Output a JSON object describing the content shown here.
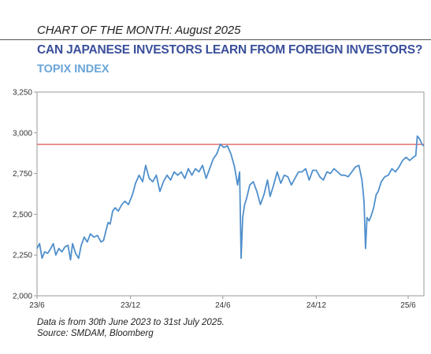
{
  "header": {
    "kicker": "CHART OF THE MONTH: August 2025",
    "title": "CAN JAPANESE INVESTORS LEARN FROM FOREIGN INVESTORS?",
    "subtitle": "TOPIX INDEX"
  },
  "footer": {
    "note": "Data is from 30th June 2023 to 31st July 2025.",
    "source": "Source: SMDAM, Bloomberg"
  },
  "colors": {
    "series": "#4f8fcc",
    "reference_line": "#e36f6f",
    "title": "#3a4f9a",
    "subtitle": "#6aa5d8"
  },
  "chart_data": {
    "type": "line",
    "title": "TOPIX INDEX",
    "xlabel": "",
    "ylabel": "",
    "ylim": [
      2000,
      3250
    ],
    "yticks": [
      2000,
      2250,
      2500,
      2750,
      3000,
      3250
    ],
    "ytick_labels": [
      "2,000",
      "2,250",
      "2,500",
      "2,750",
      "3,000",
      "3,250"
    ],
    "xlim": [
      "2023-06-30",
      "2025-07-31"
    ],
    "xticks": [
      "2023-06-30",
      "2023-12-31",
      "2024-06-30",
      "2024-12-31",
      "2025-06-30"
    ],
    "xtick_labels": [
      "23/6",
      "23/12",
      "24/6",
      "24/12",
      "25/6"
    ],
    "reference_line": {
      "y": 2929
    },
    "grid": false,
    "series": [
      {
        "points": [
          [
            "2023-06-30",
            2290
          ],
          [
            "2023-07-05",
            2320
          ],
          [
            "2023-07-10",
            2230
          ],
          [
            "2023-07-15",
            2270
          ],
          [
            "2023-07-21",
            2260
          ],
          [
            "2023-07-27",
            2290
          ],
          [
            "2023-08-01",
            2320
          ],
          [
            "2023-08-06",
            2250
          ],
          [
            "2023-08-12",
            2290
          ],
          [
            "2023-08-18",
            2270
          ],
          [
            "2023-08-24",
            2300
          ],
          [
            "2023-08-30",
            2310
          ],
          [
            "2023-09-04",
            2220
          ],
          [
            "2023-09-08",
            2320
          ],
          [
            "2023-09-14",
            2260
          ],
          [
            "2023-09-20",
            2230
          ],
          [
            "2023-09-25",
            2310
          ],
          [
            "2023-10-01",
            2360
          ],
          [
            "2023-10-07",
            2330
          ],
          [
            "2023-10-13",
            2380
          ],
          [
            "2023-10-20",
            2360
          ],
          [
            "2023-10-27",
            2370
          ],
          [
            "2023-11-03",
            2330
          ],
          [
            "2023-11-08",
            2340
          ],
          [
            "2023-11-12",
            2390
          ],
          [
            "2023-11-17",
            2450
          ],
          [
            "2023-11-21",
            2440
          ],
          [
            "2023-11-26",
            2520
          ],
          [
            "2023-12-01",
            2540
          ],
          [
            "2023-12-07",
            2520
          ],
          [
            "2023-12-14",
            2560
          ],
          [
            "2023-12-20",
            2580
          ],
          [
            "2023-12-27",
            2560
          ],
          [
            "2024-01-04",
            2620
          ],
          [
            "2024-01-10",
            2690
          ],
          [
            "2024-01-17",
            2740
          ],
          [
            "2024-01-24",
            2700
          ],
          [
            "2024-01-30",
            2800
          ],
          [
            "2024-02-06",
            2720
          ],
          [
            "2024-02-13",
            2700
          ],
          [
            "2024-02-20",
            2740
          ],
          [
            "2024-02-27",
            2640
          ],
          [
            "2024-03-05",
            2700
          ],
          [
            "2024-03-12",
            2740
          ],
          [
            "2024-03-19",
            2710
          ],
          [
            "2024-03-26",
            2760
          ],
          [
            "2024-04-02",
            2740
          ],
          [
            "2024-04-09",
            2760
          ],
          [
            "2024-04-16",
            2720
          ],
          [
            "2024-04-23",
            2780
          ],
          [
            "2024-04-30",
            2740
          ],
          [
            "2024-05-07",
            2780
          ],
          [
            "2024-05-14",
            2760
          ],
          [
            "2024-05-21",
            2800
          ],
          [
            "2024-05-28",
            2720
          ],
          [
            "2024-06-04",
            2780
          ],
          [
            "2024-06-11",
            2840
          ],
          [
            "2024-06-18",
            2870
          ],
          [
            "2024-06-25",
            2930
          ],
          [
            "2024-07-02",
            2910
          ],
          [
            "2024-07-09",
            2920
          ],
          [
            "2024-07-16",
            2870
          ],
          [
            "2024-07-23",
            2790
          ],
          [
            "2024-07-29",
            2680
          ],
          [
            "2024-08-02",
            2760
          ],
          [
            "2024-08-05",
            2230
          ],
          [
            "2024-08-08",
            2480
          ],
          [
            "2024-08-12",
            2560
          ],
          [
            "2024-08-16",
            2600
          ],
          [
            "2024-08-22",
            2680
          ],
          [
            "2024-08-29",
            2700
          ],
          [
            "2024-09-05",
            2640
          ],
          [
            "2024-09-12",
            2560
          ],
          [
            "2024-09-19",
            2620
          ],
          [
            "2024-09-26",
            2710
          ],
          [
            "2024-10-01",
            2610
          ],
          [
            "2024-10-08",
            2680
          ],
          [
            "2024-10-15",
            2760
          ],
          [
            "2024-10-22",
            2690
          ],
          [
            "2024-10-29",
            2740
          ],
          [
            "2024-11-05",
            2730
          ],
          [
            "2024-11-12",
            2680
          ],
          [
            "2024-11-19",
            2720
          ],
          [
            "2024-11-26",
            2760
          ],
          [
            "2024-12-03",
            2760
          ],
          [
            "2024-12-10",
            2780
          ],
          [
            "2024-12-17",
            2710
          ],
          [
            "2024-12-24",
            2770
          ],
          [
            "2024-12-31",
            2770
          ],
          [
            "2025-01-07",
            2730
          ],
          [
            "2025-01-14",
            2710
          ],
          [
            "2025-01-21",
            2760
          ],
          [
            "2025-01-28",
            2750
          ],
          [
            "2025-02-04",
            2780
          ],
          [
            "2025-02-11",
            2760
          ],
          [
            "2025-02-18",
            2740
          ],
          [
            "2025-02-25",
            2740
          ],
          [
            "2025-03-04",
            2730
          ],
          [
            "2025-03-11",
            2760
          ],
          [
            "2025-03-18",
            2790
          ],
          [
            "2025-03-25",
            2800
          ],
          [
            "2025-03-31",
            2710
          ],
          [
            "2025-04-04",
            2580
          ],
          [
            "2025-04-07",
            2290
          ],
          [
            "2025-04-10",
            2480
          ],
          [
            "2025-04-14",
            2460
          ],
          [
            "2025-04-18",
            2490
          ],
          [
            "2025-04-23",
            2540
          ],
          [
            "2025-04-28",
            2620
          ],
          [
            "2025-05-02",
            2640
          ],
          [
            "2025-05-08",
            2700
          ],
          [
            "2025-05-15",
            2730
          ],
          [
            "2025-05-22",
            2740
          ],
          [
            "2025-05-29",
            2780
          ],
          [
            "2025-06-05",
            2760
          ],
          [
            "2025-06-12",
            2790
          ],
          [
            "2025-06-19",
            2830
          ],
          [
            "2025-06-26",
            2850
          ],
          [
            "2025-07-03",
            2830
          ],
          [
            "2025-07-10",
            2850
          ],
          [
            "2025-07-15",
            2860
          ],
          [
            "2025-07-18",
            2980
          ],
          [
            "2025-07-23",
            2960
          ],
          [
            "2025-07-27",
            2930
          ],
          [
            "2025-07-31",
            2920
          ]
        ]
      }
    ]
  }
}
